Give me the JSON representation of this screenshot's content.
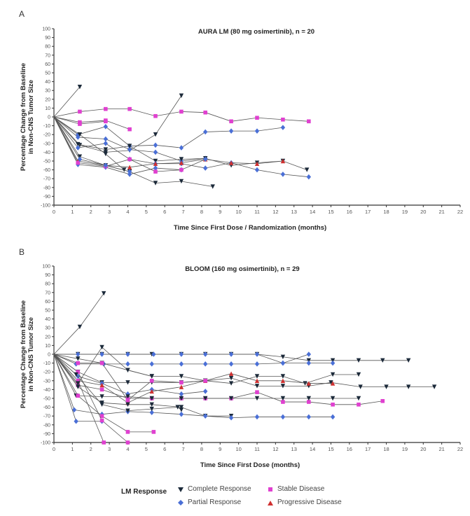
{
  "panels": [
    {
      "letter": "A"
    },
    {
      "letter": "B"
    }
  ],
  "legend": {
    "title": "LM Response",
    "items": [
      {
        "key": "CR",
        "label": "Complete Response",
        "color": "#1c2a3a",
        "marker": "triangle-down"
      },
      {
        "key": "PR",
        "label": "Partial Response",
        "color": "#4a6fd6",
        "marker": "diamond"
      },
      {
        "key": "SD",
        "label": "Stable Disease",
        "color": "#e040d0",
        "marker": "square"
      },
      {
        "key": "PD",
        "label": "Progressive Disease",
        "color": "#d03030",
        "marker": "triangle-up"
      }
    ]
  },
  "chart_data": [
    {
      "type": "line",
      "title": "AURA LM (80 mg osimertinib), n = 20",
      "xlabel": "Time Since First Dose / Randomization (months)",
      "ylabel": "Percentage Change from Baseline\nin Non-CNS Tumor Size",
      "xlim": [
        0,
        22
      ],
      "ylim": [
        -100,
        100
      ],
      "xticks": [
        0,
        1,
        2,
        3,
        4,
        5,
        6,
        7,
        8,
        9,
        10,
        11,
        12,
        13,
        14,
        15,
        16,
        17,
        18,
        19,
        20,
        21,
        22
      ],
      "yticks": [
        100,
        90,
        80,
        70,
        60,
        50,
        40,
        30,
        20,
        10,
        0,
        -10,
        -20,
        -30,
        -40,
        -50,
        -60,
        -70,
        -80,
        -90,
        -100
      ],
      "grid": false,
      "series": [
        {
          "name": "p1",
          "x": [
            0,
            1.4
          ],
          "y": [
            0,
            34
          ],
          "response": "CR"
        },
        {
          "name": "p2",
          "x": [
            0,
            1.4,
            2.8,
            4.1,
            5.5,
            6.9,
            8.2,
            9.6,
            11.0,
            12.4,
            13.8
          ],
          "y": [
            0,
            6,
            9,
            9,
            1,
            6,
            5,
            -5,
            -1,
            -3,
            -5
          ],
          "response": "SD"
        },
        {
          "name": "p3",
          "x": [
            0,
            1.4,
            2.8,
            4.1,
            5.5,
            6.9
          ],
          "y": [
            0,
            -32,
            -40,
            -38,
            -20,
            24
          ],
          "response": "CR"
        },
        {
          "name": "p4",
          "x": [
            0,
            1.4,
            2.8,
            4.1
          ],
          "y": [
            0,
            -6,
            -4,
            -14
          ],
          "response": "SD"
        },
        {
          "name": "p5",
          "x": [
            0,
            1.4,
            2.8
          ],
          "y": [
            0,
            -8,
            -5
          ],
          "response": "SD"
        },
        {
          "name": "p6",
          "x": [
            0,
            1.3,
            2.8,
            4.1,
            5.5,
            6.9,
            8.2,
            9.6,
            11.0,
            12.4
          ],
          "y": [
            0,
            -20,
            -11,
            -33,
            -32,
            -35,
            -17,
            -16,
            -16,
            -12
          ],
          "response": "PR"
        },
        {
          "name": "p7",
          "x": [
            0,
            1.3,
            2.8,
            4.1,
            5.5,
            6.9,
            8.2
          ],
          "y": [
            0,
            -23,
            -25,
            -37,
            -40,
            -50,
            -47
          ],
          "response": "PR"
        },
        {
          "name": "p8",
          "x": [
            0,
            1.3,
            2.8,
            4.1,
            5.5,
            6.9,
            8.2,
            9.6,
            11.0,
            12.4,
            13.7
          ],
          "y": [
            0,
            -31,
            -37,
            -33,
            -50,
            -48,
            -47,
            -55,
            -52,
            -50,
            -60
          ],
          "response": "CR"
        },
        {
          "name": "p9",
          "x": [
            0,
            1.3,
            2.8,
            4.1,
            5.5,
            6.9,
            8.2,
            9.6,
            11.0,
            12.4,
            13.8
          ],
          "y": [
            0,
            -35,
            -30,
            -48,
            -53,
            -53,
            -58,
            -52,
            -60,
            -65,
            -68
          ],
          "response": "PR"
        },
        {
          "name": "p10",
          "x": [
            0,
            1.3,
            2.8,
            4.1,
            5.5,
            6.9,
            8.2,
            9.6,
            11.0,
            12.4
          ],
          "y": [
            0,
            -50,
            -55,
            -57,
            -53,
            -52,
            -48,
            -52,
            -53,
            -50
          ],
          "response": "PD"
        },
        {
          "name": "p11",
          "x": [
            0,
            1.3,
            2.8,
            4.1,
            5.5,
            6.9,
            8.2
          ],
          "y": [
            0,
            -54,
            -57,
            -65,
            -58,
            -60,
            -48
          ],
          "response": "PR"
        },
        {
          "name": "p12",
          "x": [
            0,
            1.3,
            2.8,
            4.1,
            5.5,
            6.9
          ],
          "y": [
            0,
            -52,
            -56,
            -48,
            -62,
            -60
          ],
          "response": "SD"
        },
        {
          "name": "p13",
          "x": [
            0,
            1.4,
            2.8,
            4.1,
            5.5,
            6.9,
            8.6
          ],
          "y": [
            0,
            -45,
            -55,
            -62,
            -75,
            -73,
            -79
          ],
          "response": "CR"
        },
        {
          "name": "p14",
          "x": [
            0,
            1.4,
            2.8,
            3.8
          ],
          "y": [
            0,
            -20,
            -42,
            -60
          ],
          "response": "CR"
        },
        {
          "name": "p15",
          "x": [
            0,
            1.4,
            2.8,
            4.1
          ],
          "y": [
            0,
            -48,
            -55,
            -62
          ],
          "response": "PR"
        }
      ]
    },
    {
      "type": "line",
      "title": "BLOOM (160 mg osimertinib), n = 29",
      "xlabel": "Time Since First Dose (months)",
      "ylabel": "Percentage Change from Baseline\nin Non-CNS Tumor Size",
      "xlim": [
        0,
        22
      ],
      "ylim": [
        -100,
        100
      ],
      "xticks": [
        0,
        1,
        2,
        3,
        4,
        5,
        6,
        7,
        8,
        9,
        10,
        11,
        12,
        13,
        14,
        15,
        16,
        17,
        18,
        19,
        20,
        21,
        22
      ],
      "yticks": [
        100,
        90,
        80,
        70,
        60,
        50,
        40,
        30,
        20,
        10,
        0,
        -10,
        -20,
        -30,
        -40,
        -50,
        -60,
        -70,
        -80,
        -90,
        -100
      ],
      "grid": false,
      "series": [
        {
          "name": "q1",
          "x": [
            0,
            1.4,
            2.7
          ],
          "y": [
            0,
            31,
            69
          ],
          "response": "CR"
        },
        {
          "name": "q2",
          "x": [
            0,
            1.3,
            2.6,
            4.0,
            5.3,
            6.9,
            8.2,
            9.6,
            11.0,
            12.4,
            13.8,
            15.1,
            16.5,
            17.8,
            19.2
          ],
          "y": [
            0,
            0,
            0,
            0,
            0,
            0,
            0,
            0,
            0,
            -3,
            -7,
            -7,
            -7,
            -7,
            -7
          ],
          "response": "CR"
        },
        {
          "name": "q3",
          "x": [
            0,
            1.3,
            2.6,
            4.0,
            5.4,
            6.9,
            8.2,
            9.6,
            11.0,
            12.4,
            13.8,
            15.1
          ],
          "y": [
            0,
            0,
            0,
            0,
            0,
            0,
            0,
            0,
            0,
            -10,
            -10,
            -10
          ],
          "response": "PR"
        },
        {
          "name": "q4",
          "x": [
            0,
            1.2,
            2.7,
            4.0,
            5.3,
            6.9,
            8.2,
            9.6,
            11.0,
            12.4,
            13.8
          ],
          "y": [
            0,
            -11,
            -11,
            -11,
            -11,
            -11,
            -11,
            -11,
            -11,
            -10,
            0
          ],
          "response": "PR"
        },
        {
          "name": "q5",
          "x": [
            0,
            1.3,
            2.6,
            4.0,
            5.3,
            6.9,
            8.2,
            9.6,
            11.0,
            12.4,
            13.6,
            15.1,
            16.5
          ],
          "y": [
            0,
            -5,
            -10,
            -18,
            -25,
            -25,
            -30,
            -33,
            -25,
            -25,
            -33,
            -23,
            -23
          ],
          "response": "CR"
        },
        {
          "name": "q6",
          "x": [
            0,
            1.3,
            2.6,
            4.0,
            5.3,
            6.9,
            8.2,
            9.6,
            11.0,
            12.4,
            13.8,
            15.0,
            16.6,
            18.0,
            19.2,
            20.6
          ],
          "y": [
            0,
            -20,
            -32,
            -32,
            -32,
            -32,
            -30,
            -27,
            -36,
            -36,
            -36,
            -32,
            -37,
            -37,
            -37,
            -37
          ],
          "response": "CR"
        },
        {
          "name": "q7",
          "x": [
            0,
            1.3,
            2.6,
            4.0,
            5.3,
            6.9,
            8.2
          ],
          "y": [
            0,
            -25,
            -33,
            -45,
            -40,
            -45,
            -42
          ],
          "response": "PR"
        },
        {
          "name": "q8",
          "x": [
            0,
            1.3,
            2.6,
            4.0,
            5.3,
            6.9,
            8.2,
            9.6,
            11.0,
            12.4,
            13.8,
            15.1,
            16.5,
            17.8
          ],
          "y": [
            0,
            -35,
            -40,
            -50,
            -50,
            -50,
            -50,
            -50,
            -43,
            -54,
            -54,
            -57,
            -57,
            -53
          ],
          "response": "SD"
        },
        {
          "name": "q9",
          "x": [
            0,
            1.2,
            2.6,
            4.0,
            5.3,
            6.9,
            8.2,
            9.6,
            11.0,
            12.4,
            13.8,
            15.1,
            16.5
          ],
          "y": [
            0,
            -47,
            -48,
            -48,
            -50,
            -50,
            -50,
            -50,
            -50,
            -50,
            -50,
            -50,
            -50
          ],
          "response": "CR"
        },
        {
          "name": "q10",
          "x": [
            0,
            1.3,
            2.6,
            4.0,
            5.3,
            6.9,
            8.2,
            9.6,
            11.0,
            12.4,
            13.8,
            15.1
          ],
          "y": [
            0,
            -30,
            -35,
            -55,
            -42,
            -37,
            -30,
            -22,
            -30,
            -30,
            -33,
            -33
          ],
          "response": "PD"
        },
        {
          "name": "q11",
          "x": [
            0,
            1.3,
            2.6,
            4.0,
            5.3,
            6.9,
            8.2,
            9.6
          ],
          "y": [
            0,
            -37,
            -55,
            -57,
            -57,
            -60,
            -70,
            -70
          ],
          "response": "CR"
        },
        {
          "name": "q12",
          "x": [
            0,
            1.1,
            2.6,
            4.0,
            5.3,
            6.9,
            8.2,
            9.6,
            11.0,
            12.4,
            13.8,
            15.1
          ],
          "y": [
            0,
            -63,
            -68,
            -65,
            -66,
            -68,
            -70,
            -72,
            -71,
            -71,
            -71,
            -71
          ],
          "response": "PR"
        },
        {
          "name": "q13",
          "x": [
            0,
            1.2,
            2.6
          ],
          "y": [
            0,
            -76,
            -76
          ],
          "response": "PR"
        },
        {
          "name": "q14",
          "x": [
            0,
            1.3,
            2.6,
            4.0,
            5.4
          ],
          "y": [
            0,
            -47,
            -70,
            -88,
            -88
          ],
          "response": "SD"
        },
        {
          "name": "q15",
          "x": [
            0,
            1.3,
            2.7
          ],
          "y": [
            0,
            -30,
            -100
          ],
          "response": "SD"
        },
        {
          "name": "q16",
          "x": [
            0,
            1.3,
            2.6,
            4.0
          ],
          "y": [
            0,
            -20,
            -75,
            -100
          ],
          "response": "SD"
        },
        {
          "name": "q17",
          "x": [
            0,
            1.2,
            2.6,
            4.0,
            5.3,
            6.7,
            6.9
          ],
          "y": [
            0,
            -23,
            -57,
            -64,
            -62,
            -60,
            -63
          ],
          "response": "CR"
        },
        {
          "name": "q18",
          "x": [
            0,
            1.3,
            2.6,
            4.0,
            5.3,
            6.9,
            8.2
          ],
          "y": [
            0,
            -10,
            -10,
            -52,
            -30,
            -32,
            -30
          ],
          "response": "SD"
        },
        {
          "name": "q19",
          "x": [
            0,
            1.3,
            2.6,
            4.0,
            5.3
          ],
          "y": [
            0,
            -33,
            8,
            -18,
            -25
          ],
          "response": "CR"
        }
      ]
    }
  ]
}
